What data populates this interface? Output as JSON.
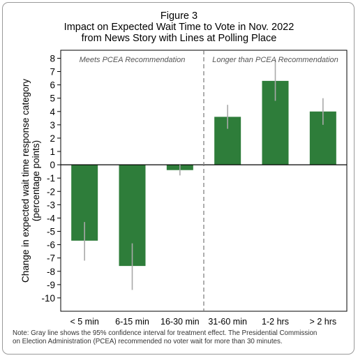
{
  "title": {
    "line1": "Figure 3",
    "line2": "Impact on Expected Wait Time to Vote in Nov. 2022",
    "line3": "from News Story with Lines at Polling Place"
  },
  "note": {
    "line1": "Note: Gray line shows the 95% confidence interval for treatment effect. The Presidential Commission",
    "line2": "on Election Administration (PCEA) recommended no voter wait for more than 30 minutes."
  },
  "chart_data": {
    "type": "bar",
    "title": "Impact on Expected Wait Time to Vote in Nov. 2022 from News Story with Lines at Polling Place",
    "ylabel_line1": "Change in expected wait time response category",
    "ylabel_line2": "(percentage points)",
    "xlabel": "",
    "ylim": [
      -11,
      8.6
    ],
    "yticks": [
      8,
      7,
      6,
      5,
      4,
      3,
      2,
      1,
      0,
      -1,
      -2,
      -3,
      -4,
      -5,
      -6,
      -7,
      -8,
      -9,
      -10
    ],
    "categories": [
      "< 5 min",
      "6-15 min",
      "16-30 min",
      "31-60 min",
      "1-2 hrs",
      "> 2 hrs"
    ],
    "values": [
      -5.7,
      -7.6,
      -0.4,
      3.6,
      6.3,
      4.0
    ],
    "ci_low": [
      -7.2,
      -9.4,
      -0.8,
      2.7,
      4.8,
      3.0
    ],
    "ci_high": [
      -4.3,
      -5.9,
      0.0,
      4.5,
      7.9,
      5.0
    ],
    "groups": [
      {
        "label": "Meets PCEA Recommendation",
        "categories": [
          "< 5 min",
          "6-15 min",
          "16-30 min"
        ]
      },
      {
        "label": "Longer than PCEA Recommendation",
        "categories": [
          "31-60 min",
          "1-2 hrs",
          "> 2 hrs"
        ]
      }
    ],
    "bar_color": "#2e7d3a",
    "ci_color": "#a9a9a9",
    "divider_style": "dashed",
    "grid": false,
    "zero_line": true
  }
}
